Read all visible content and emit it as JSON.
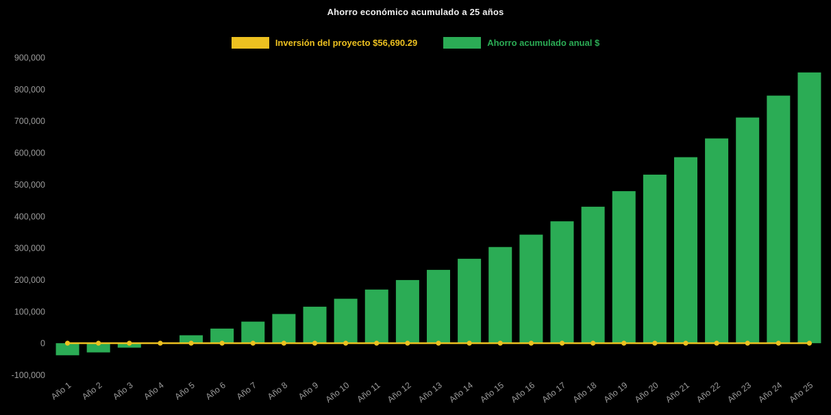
{
  "title": "Ahorro económico acumulado a 25 años",
  "colors": {
    "background": "#000000",
    "title_text": "#efefef",
    "axis_text": "#9b9b9b",
    "bar_green": "#2bac55",
    "line_yellow": "#edc120"
  },
  "legend": [
    {
      "label": "Inversión del proyecto $56,690.29",
      "color": "#edc120",
      "type": "line"
    },
    {
      "label": "Ahorro acumulado anual $",
      "color": "#2bac55",
      "type": "bar"
    }
  ],
  "chart_data": {
    "type": "bar",
    "title": "Ahorro económico acumulado a 25 años",
    "xlabel": "",
    "ylabel": "",
    "ylim": [
      -100000,
      900000
    ],
    "y_tick_step": 100000,
    "grid": false,
    "legend_position": "top",
    "y_ticks": {
      "values": [
        -100000,
        0,
        100000,
        200000,
        300000,
        400000,
        500000,
        600000,
        700000,
        800000,
        900000
      ],
      "labels": [
        "-100,000",
        "0",
        "100,000",
        "200,000",
        "300,000",
        "400,000",
        "500,000",
        "600,000",
        "700,000",
        "800,000",
        "900,000"
      ]
    },
    "categories": [
      "Año 1",
      "Año 2",
      "Año 3",
      "Año 4",
      "Año 5",
      "Año 6",
      "Año 7",
      "Año 8",
      "Año 9",
      "Año 10",
      "Año 11",
      "Año 12",
      "Año 13",
      "Año 14",
      "Año 15",
      "Año 16",
      "Año 17",
      "Año 18",
      "Año 19",
      "Año 20",
      "Año 21",
      "Año 22",
      "Año 23",
      "Año 24",
      "Año 25"
    ],
    "series": [
      {
        "name": "Ahorro acumulado anual $",
        "type": "bar",
        "color": "#2bac55",
        "values": [
          -38000,
          -29000,
          -14000,
          2000,
          25000,
          46000,
          68000,
          92000,
          115000,
          140000,
          169000,
          199000,
          231000,
          266000,
          303000,
          342000,
          384000,
          430000,
          479000,
          531000,
          586000,
          645000,
          711000,
          780000,
          853000
        ]
      },
      {
        "name": "Inversión del proyecto $56,690.29",
        "type": "line",
        "color": "#edc120",
        "values": [
          0,
          0,
          0,
          0,
          0,
          0,
          0,
          0,
          0,
          0,
          0,
          0,
          0,
          0,
          0,
          0,
          0,
          0,
          0,
          0,
          0,
          0,
          0,
          0,
          0
        ]
      }
    ]
  }
}
